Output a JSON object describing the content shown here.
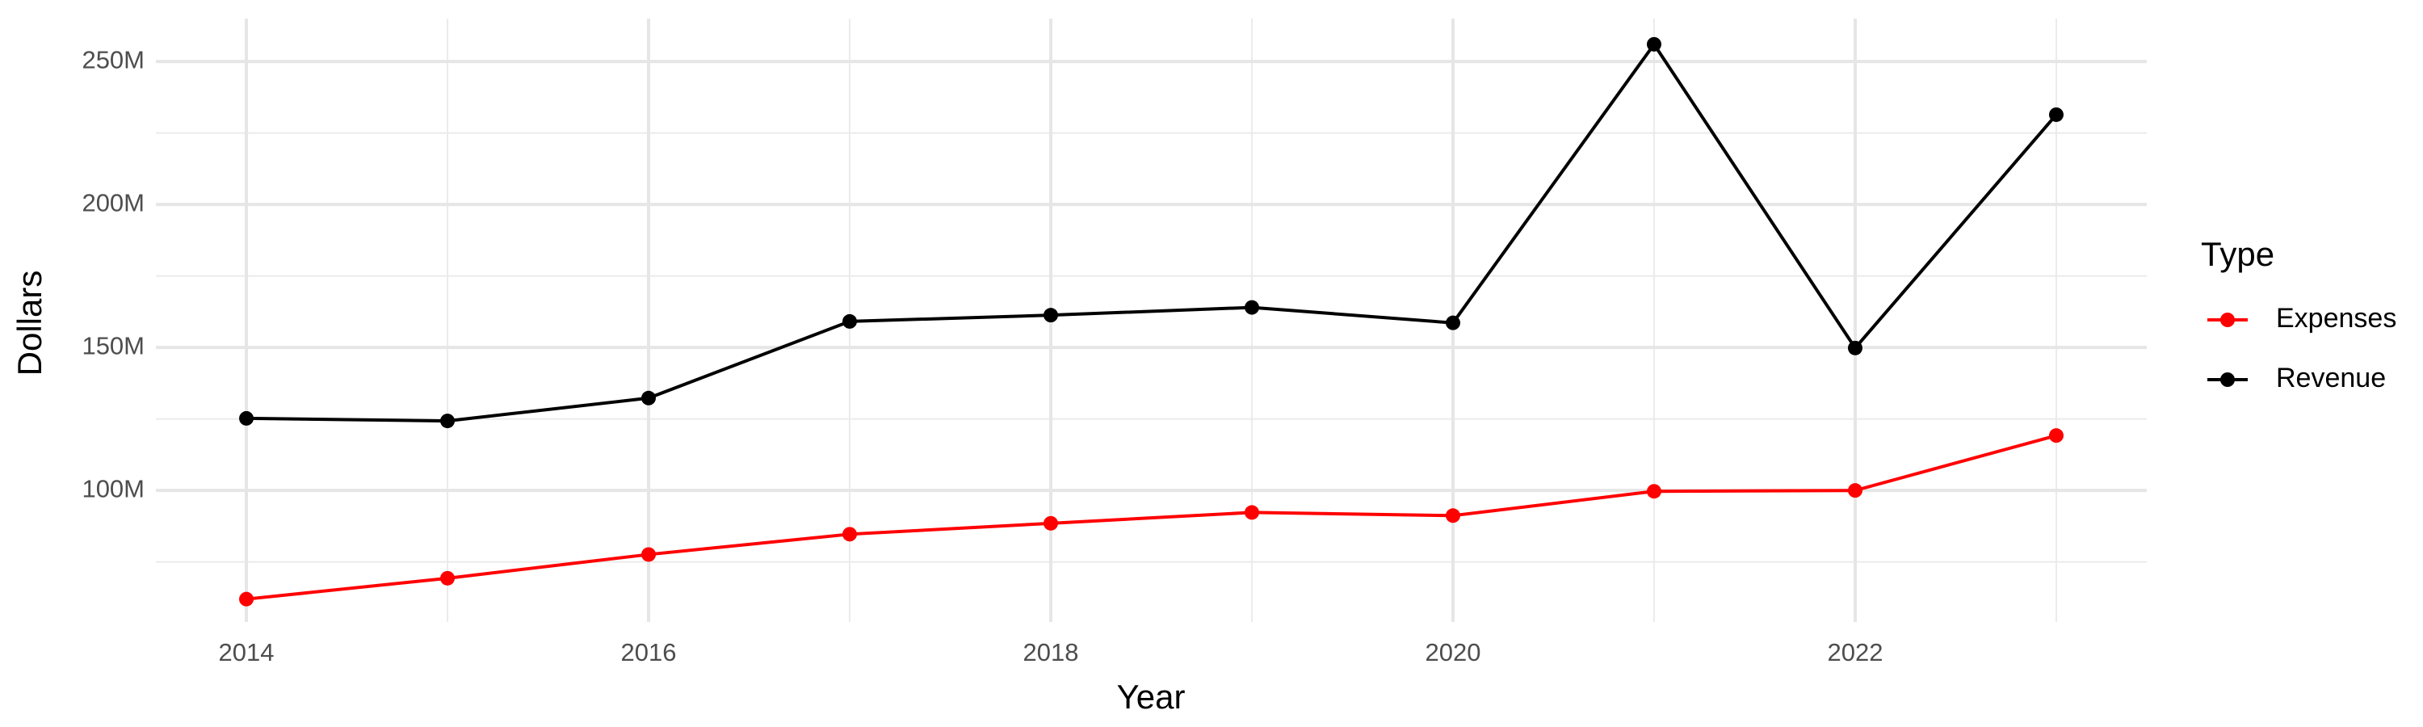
{
  "chart_data": {
    "type": "line",
    "xlabel": "Year",
    "ylabel": "Dollars",
    "legend_title": "Type",
    "legend_position": "right",
    "grid": true,
    "x": [
      2014,
      2015,
      2016,
      2017,
      2018,
      2019,
      2020,
      2021,
      2022,
      2023
    ],
    "xlim": [
      2013.55,
      2023.45
    ],
    "xticks": [
      2014,
      2016,
      2018,
      2020,
      2022
    ],
    "ylim": [
      54000000,
      265000000
    ],
    "yticks": [
      {
        "value": 100000000,
        "label": "100M"
      },
      {
        "value": 150000000,
        "label": "150M"
      },
      {
        "value": 200000000,
        "label": "200M"
      },
      {
        "value": 250000000,
        "label": "250M"
      }
    ],
    "series": [
      {
        "name": "Expenses",
        "color": "#ff0000",
        "values": [
          62000000,
          69300000,
          77600000,
          84700000,
          88500000,
          92300000,
          91200000,
          99700000,
          100000000,
          119200000
        ]
      },
      {
        "name": "Revenue",
        "color": "#000000",
        "values": [
          125200000,
          124300000,
          132300000,
          159100000,
          161300000,
          164000000,
          158600000,
          256000000,
          149800000,
          231400000
        ]
      }
    ]
  }
}
